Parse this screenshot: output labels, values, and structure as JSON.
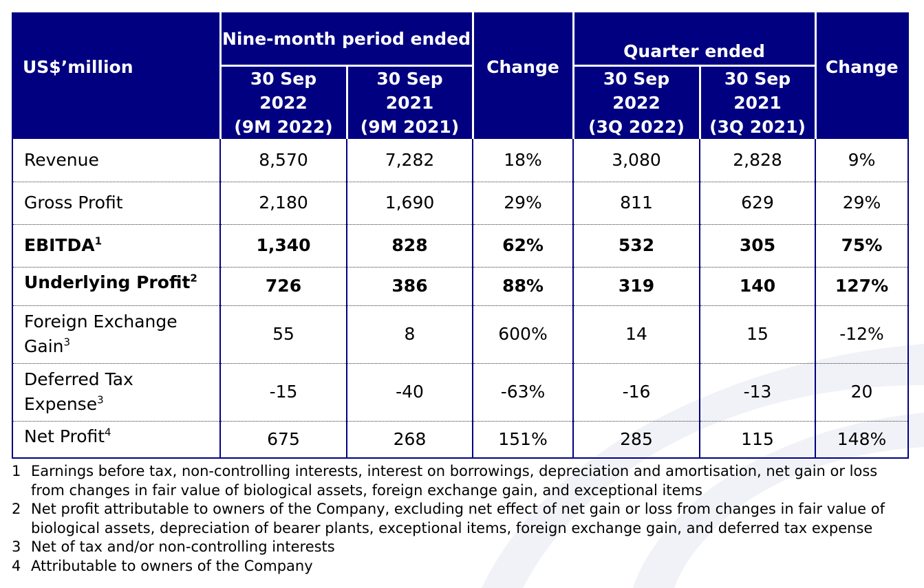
{
  "header": {
    "units_label": "US$’million",
    "nine_month_group": "Nine-month period ended",
    "quarter_group": "Quarter ended",
    "columns": [
      {
        "line1": "30 Sep",
        "line2": "2022",
        "line3": "(9M 2022)"
      },
      {
        "line1": "30 Sep",
        "line2": "2021",
        "line3": "(9M 2021)"
      },
      {
        "line1": "Change"
      },
      {
        "line1": "30 Sep",
        "line2": "2022",
        "line3": "(3Q 2022)"
      },
      {
        "line1": "30 Sep",
        "line2": "2021",
        "line3": "(3Q 2021)"
      },
      {
        "line1": "Change"
      }
    ]
  },
  "rows": [
    {
      "label": "Revenue",
      "sup": "",
      "bold": false,
      "values": [
        "8,570",
        "7,282",
        "18%",
        "3,080",
        "2,828",
        "9%"
      ]
    },
    {
      "label": "Gross Profit",
      "sup": "",
      "bold": false,
      "values": [
        "2,180",
        "1,690",
        "29%",
        "811",
        "629",
        "29%"
      ]
    },
    {
      "label": "EBITDA",
      "sup": "1",
      "bold": true,
      "values": [
        "1,340",
        "828",
        "62%",
        "532",
        "305",
        "75%"
      ]
    },
    {
      "label": "Underlying Profit",
      "sup": "2",
      "bold": true,
      "values": [
        "726",
        "386",
        "88%",
        "319",
        "140",
        "127%"
      ]
    },
    {
      "label_line1": "Foreign Exchange",
      "label_line2": "Gain",
      "sup": "3",
      "bold": false,
      "values": [
        "55",
        "8",
        "600%",
        "14",
        "15",
        "-12%"
      ]
    },
    {
      "label_line1": "Deferred Tax",
      "label_line2": "Expense",
      "sup": "3",
      "bold": false,
      "values": [
        "-15",
        "-40",
        "-63%",
        "-16",
        "-13",
        "20"
      ]
    },
    {
      "label": "Net Profit",
      "sup": "4",
      "bold": false,
      "values": [
        "675",
        "268",
        "151%",
        "285",
        "115",
        "148%"
      ]
    }
  ],
  "footnotes": [
    {
      "num": "1",
      "text": "Earnings before tax, non-controlling interests, interest on borrowings, depreciation and amortisation, net gain or loss from changes in fair value of biological assets, foreign exchange gain, and exceptional items"
    },
    {
      "num": "2",
      "text": "Net profit attributable to owners of the Company, excluding net effect of net gain or loss from changes in fair value of biological assets, depreciation of bearer plants, exceptional items, foreign exchange gain, and deferred tax expense"
    },
    {
      "num": "3",
      "text": "Net of tax and/or non-controlling interests"
    },
    {
      "num": "4",
      "text": "Attributable to owners of the Company"
    }
  ],
  "colors": {
    "header_bg": "#000080",
    "header_text": "#ffffff",
    "border": "#000080"
  }
}
